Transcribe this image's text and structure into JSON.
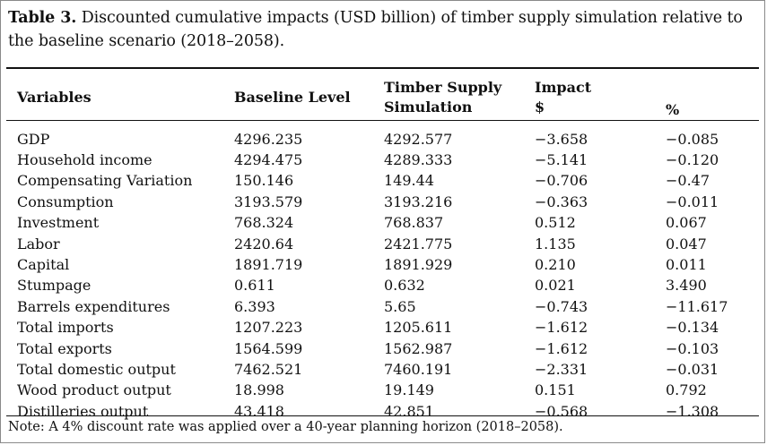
{
  "caption": {
    "label": "Table 3.",
    "text": " Discounted cumulative impacts (USD billion) of timber supply simulation relative to the baseline scenario (2018–2058)."
  },
  "table": {
    "headers": {
      "variables": "Variables",
      "baseline": "Baseline Level",
      "simulation_line1": "Timber Supply",
      "simulation_line2": "Simulation",
      "impact_line1": "Impact",
      "impact_line2": "$",
      "percent": "%"
    },
    "rows": [
      {
        "variable": "GDP",
        "baseline": "4296.235",
        "simulation": "4292.577",
        "impact": "−3.658",
        "percent": "−0.085"
      },
      {
        "variable": "Household income",
        "baseline": "4294.475",
        "simulation": "4289.333",
        "impact": "−5.141",
        "percent": "−0.120"
      },
      {
        "variable": "Compensating Variation",
        "baseline": "150.146",
        "simulation": "149.44",
        "impact": "−0.706",
        "percent": "−0.47"
      },
      {
        "variable": "Consumption",
        "baseline": "3193.579",
        "simulation": "3193.216",
        "impact": "−0.363",
        "percent": "−0.011"
      },
      {
        "variable": "Investment",
        "baseline": "768.324",
        "simulation": "768.837",
        "impact": "0.512",
        "percent": "0.067"
      },
      {
        "variable": "Labor",
        "baseline": "2420.64",
        "simulation": "2421.775",
        "impact": "1.135",
        "percent": "0.047"
      },
      {
        "variable": "Capital",
        "baseline": "1891.719",
        "simulation": "1891.929",
        "impact": "0.210",
        "percent": "0.011"
      },
      {
        "variable": "Stumpage",
        "baseline": "0.611",
        "simulation": "0.632",
        "impact": "0.021",
        "percent": "3.490"
      },
      {
        "variable": "Barrels expenditures",
        "baseline": "6.393",
        "simulation": "5.65",
        "impact": "−0.743",
        "percent": "−11.617"
      },
      {
        "variable": "Total imports",
        "baseline": "1207.223",
        "simulation": "1205.611",
        "impact": "−1.612",
        "percent": "−0.134"
      },
      {
        "variable": "Total exports",
        "baseline": "1564.599",
        "simulation": "1562.987",
        "impact": "−1.612",
        "percent": "−0.103"
      },
      {
        "variable": "Total domestic output",
        "baseline": "7462.521",
        "simulation": "7460.191",
        "impact": "−2.331",
        "percent": "−0.031"
      },
      {
        "variable": "Wood product output",
        "baseline": "18.998",
        "simulation": "19.149",
        "impact": "0.151",
        "percent": "0.792"
      },
      {
        "variable": "Distilleries output",
        "baseline": "43.418",
        "simulation": "42.851",
        "impact": "−0.568",
        "percent": "−1.308"
      }
    ]
  },
  "note": "Note: A 4% discount rate was applied over a 40-year planning horizon (2018–2058)."
}
